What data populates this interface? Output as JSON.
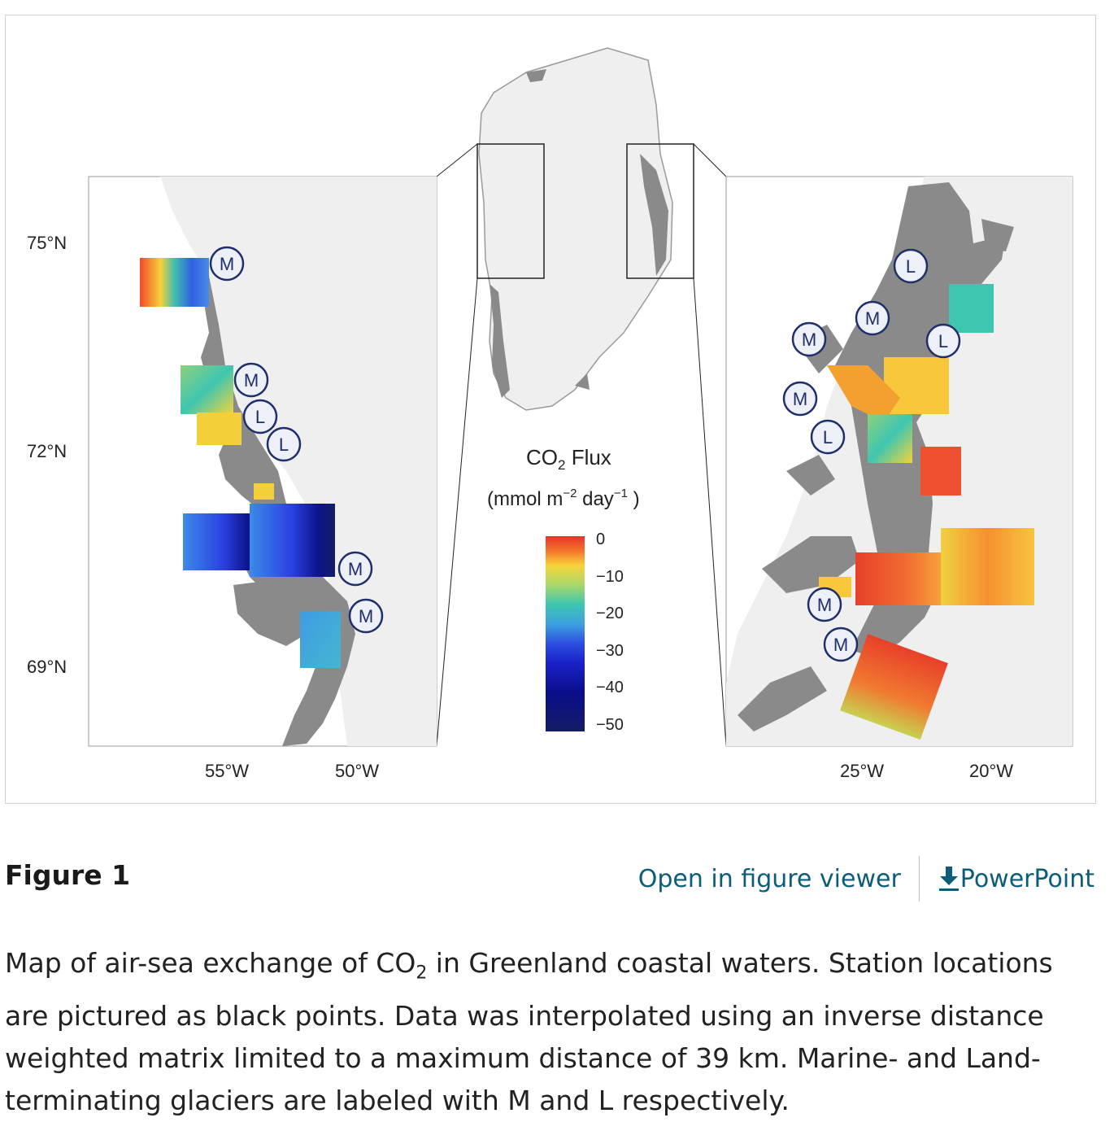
{
  "figure": {
    "legend": {
      "title_main": "CO",
      "title_sub": "2",
      "title_rest": " Flux",
      "units_pre": "(mmol m",
      "units_exp1": "−2",
      "units_mid": " day",
      "units_exp2": "−1",
      "units_post": " )",
      "ticks": [
        "0",
        "−10",
        "−20",
        "−30",
        "−40",
        "−50"
      ]
    },
    "left_map": {
      "lat_labels": [
        "75°N",
        "72°N",
        "69°N"
      ],
      "lon_labels": [
        "55°W",
        "50°W"
      ]
    },
    "right_map": {
      "lon_labels": [
        "25°W",
        "20°W"
      ]
    },
    "glacier_markers": {
      "marine": "M",
      "land": "L"
    }
  },
  "header": {
    "title": "Figure 1",
    "viewer_link": "Open in figure viewer",
    "powerpoint_link": "PowerPoint",
    "download_icon": "download-icon"
  },
  "caption": {
    "part1": "Map of air-sea exchange of CO",
    "sub": "2",
    "part2": " in Greenland coastal waters. Station locations are pictured as black points. Data was interpolated using an inverse distance weighted matrix limited to a maximum distance of 39 km. Marine- and Land-terminating glaciers are labeled with M and L respectively."
  },
  "colors": {
    "link": "#0b5d7a",
    "land": "#f0f0f0",
    "rock": "#8a8a8a",
    "marker_stroke": "#1f2f6b"
  }
}
